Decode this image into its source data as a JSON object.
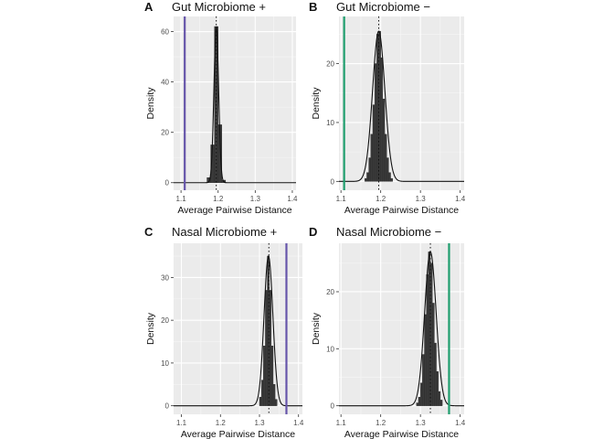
{
  "chart_data": [
    {
      "panel_letter": "A",
      "title": "Gut Microbiome +",
      "type": "histogram",
      "xlabel": "Average Pairwise Distance",
      "ylabel": "Density",
      "xlim": [
        1.08,
        1.41
      ],
      "ylim": [
        -3,
        66
      ],
      "x_ticks": [
        1.1,
        1.2,
        1.3,
        1.4
      ],
      "x_tick_labels": [
        "1.1",
        "1.2",
        "1.3",
        "1.4"
      ],
      "y_ticks": [
        0,
        20,
        40,
        60
      ],
      "y_tick_labels": [
        "0",
        "20",
        "40",
        "60"
      ],
      "bin_width": 0.01,
      "bins": [
        {
          "x0": 1.17,
          "x1": 1.18,
          "density": 2
        },
        {
          "x0": 1.18,
          "x1": 1.19,
          "density": 15
        },
        {
          "x0": 1.19,
          "x1": 1.2,
          "density": 62
        },
        {
          "x0": 1.2,
          "x1": 1.21,
          "density": 23
        },
        {
          "x0": 1.21,
          "x1": 1.22,
          "density": 1
        }
      ],
      "density_curve": {
        "mean": 1.195,
        "sd": 0.0063,
        "scale": 1.0
      },
      "mean_line": 1.195,
      "observed_line": 1.11,
      "observed_color": "#6655aa",
      "grid": true
    },
    {
      "panel_letter": "B",
      "title": "Gut Microbiome −",
      "type": "histogram",
      "xlabel": "Average Pairwise Distance",
      "ylabel": "Density",
      "xlim": [
        1.095,
        1.41
      ],
      "ylim": [
        -1.5,
        28
      ],
      "x_ticks": [
        1.1,
        1.2,
        1.3,
        1.4
      ],
      "x_tick_labels": [
        "1.1",
        "1.2",
        "1.3",
        "1.4"
      ],
      "y_ticks": [
        0,
        10,
        20
      ],
      "y_tick_labels": [
        "0",
        "10",
        "20"
      ],
      "bin_width": 0.005,
      "bins": [
        {
          "x0": 1.16,
          "x1": 1.165,
          "density": 0.5
        },
        {
          "x0": 1.165,
          "x1": 1.17,
          "density": 1.5
        },
        {
          "x0": 1.17,
          "x1": 1.175,
          "density": 4
        },
        {
          "x0": 1.175,
          "x1": 1.18,
          "density": 8
        },
        {
          "x0": 1.18,
          "x1": 1.185,
          "density": 13
        },
        {
          "x0": 1.185,
          "x1": 1.19,
          "density": 20
        },
        {
          "x0": 1.19,
          "x1": 1.195,
          "density": 25
        },
        {
          "x0": 1.195,
          "x1": 1.2,
          "density": 25.5
        },
        {
          "x0": 1.2,
          "x1": 1.205,
          "density": 21
        },
        {
          "x0": 1.205,
          "x1": 1.21,
          "density": 14
        },
        {
          "x0": 1.21,
          "x1": 1.215,
          "density": 8
        },
        {
          "x0": 1.215,
          "x1": 1.22,
          "density": 4
        },
        {
          "x0": 1.22,
          "x1": 1.225,
          "density": 1.5
        },
        {
          "x0": 1.225,
          "x1": 1.23,
          "density": 0.5
        }
      ],
      "density_curve": {
        "mean": 1.195,
        "sd": 0.0155,
        "scale": 1.0
      },
      "mean_line": 1.195,
      "observed_line": 1.108,
      "observed_color": "#1f9e6e",
      "grid": true
    },
    {
      "panel_letter": "C",
      "title": "Nasal Microbiome +",
      "type": "histogram",
      "xlabel": "Average Pairwise Distance",
      "ylabel": "Density",
      "xlim": [
        1.08,
        1.41
      ],
      "ylim": [
        -2,
        38
      ],
      "x_ticks": [
        1.1,
        1.2,
        1.3,
        1.4
      ],
      "x_tick_labels": [
        "1.1",
        "1.2",
        "1.3",
        "1.4"
      ],
      "y_ticks": [
        0,
        10,
        20,
        30
      ],
      "y_tick_labels": [
        "0",
        "10",
        "20",
        "30"
      ],
      "bin_width": 0.005,
      "bins": [
        {
          "x0": 1.3,
          "x1": 1.305,
          "density": 2
        },
        {
          "x0": 1.305,
          "x1": 1.31,
          "density": 6
        },
        {
          "x0": 1.31,
          "x1": 1.315,
          "density": 14
        },
        {
          "x0": 1.315,
          "x1": 1.32,
          "density": 27
        },
        {
          "x0": 1.32,
          "x1": 1.325,
          "density": 35
        },
        {
          "x0": 1.325,
          "x1": 1.33,
          "density": 27
        },
        {
          "x0": 1.33,
          "x1": 1.335,
          "density": 14
        },
        {
          "x0": 1.335,
          "x1": 1.34,
          "density": 5
        },
        {
          "x0": 1.34,
          "x1": 1.345,
          "density": 1.5
        }
      ],
      "density_curve": {
        "mean": 1.323,
        "sd": 0.0113,
        "scale": 1.0
      },
      "mean_line": 1.324,
      "observed_line": 1.369,
      "observed_color": "#6655aa",
      "grid": true
    },
    {
      "panel_letter": "D",
      "title": "Nasal Microbiome −",
      "type": "histogram",
      "xlabel": "Average Pairwise Distance",
      "ylabel": "Density",
      "xlim": [
        1.095,
        1.41
      ],
      "ylim": [
        -1.5,
        28.5
      ],
      "x_ticks": [
        1.1,
        1.2,
        1.3,
        1.4
      ],
      "x_tick_labels": [
        "1.1",
        "1.2",
        "1.3",
        "1.4"
      ],
      "y_ticks": [
        0,
        10,
        20
      ],
      "y_tick_labels": [
        "0",
        "10",
        "20"
      ],
      "bin_width": 0.005,
      "bins": [
        {
          "x0": 1.29,
          "x1": 1.295,
          "density": 0.5
        },
        {
          "x0": 1.295,
          "x1": 1.3,
          "density": 1.5
        },
        {
          "x0": 1.3,
          "x1": 1.305,
          "density": 4
        },
        {
          "x0": 1.305,
          "x1": 1.31,
          "density": 9
        },
        {
          "x0": 1.31,
          "x1": 1.315,
          "density": 16
        },
        {
          "x0": 1.315,
          "x1": 1.32,
          "density": 23
        },
        {
          "x0": 1.32,
          "x1": 1.325,
          "density": 27
        },
        {
          "x0": 1.325,
          "x1": 1.33,
          "density": 25
        },
        {
          "x0": 1.33,
          "x1": 1.335,
          "density": 18
        },
        {
          "x0": 1.335,
          "x1": 1.34,
          "density": 11
        },
        {
          "x0": 1.34,
          "x1": 1.345,
          "density": 6
        },
        {
          "x0": 1.345,
          "x1": 1.35,
          "density": 2.5
        },
        {
          "x0": 1.35,
          "x1": 1.355,
          "density": 1
        }
      ],
      "density_curve": {
        "mean": 1.325,
        "sd": 0.0145,
        "scale": 1.0
      },
      "mean_line": 1.325,
      "observed_line": 1.372,
      "observed_color": "#1f9e6e",
      "grid": true
    }
  ]
}
